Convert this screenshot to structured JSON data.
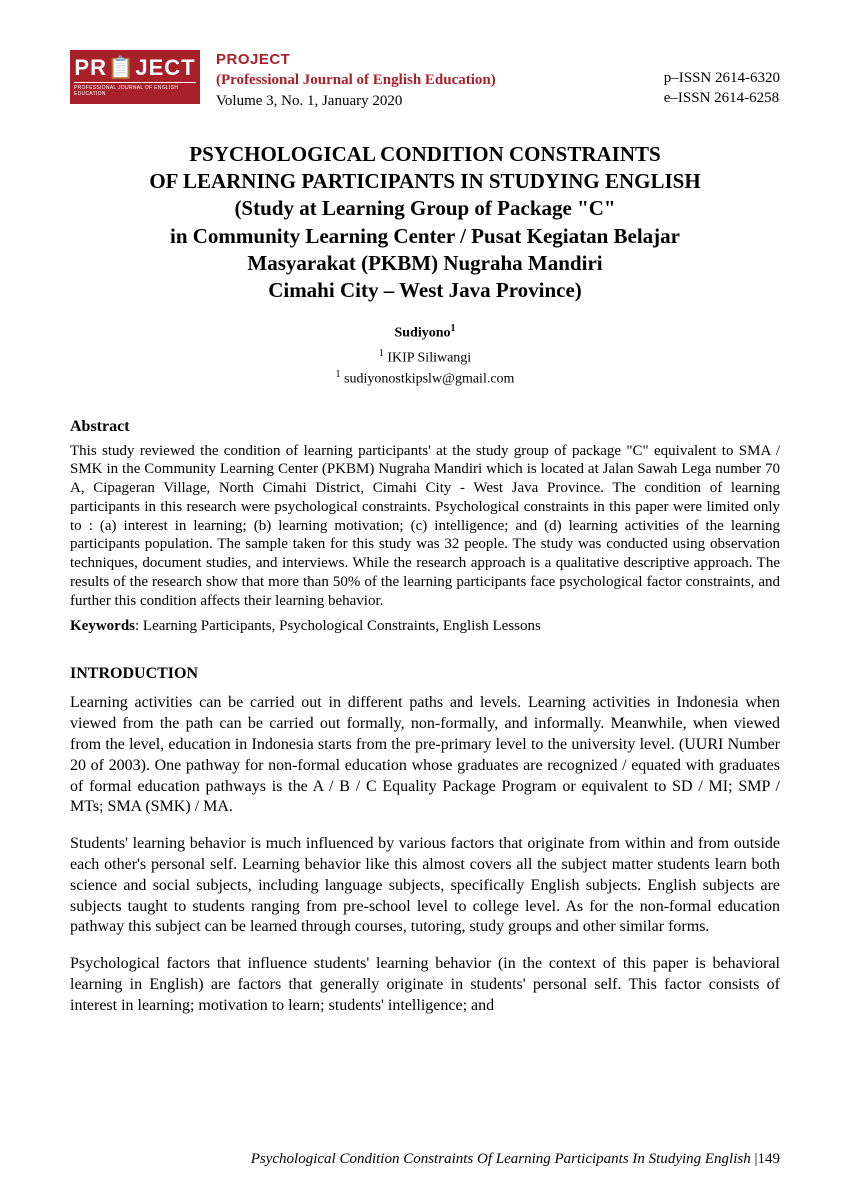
{
  "header": {
    "logo_main": "PR📋JECT",
    "logo_sub": "PROFESSIONAL JOURNAL OF ENGLISH EDUCATION",
    "journal_name": "PROJECT",
    "journal_full": "(Professional Journal of English Education)",
    "volume_line": "Volume 3, No. 1, January 2020",
    "pissn": "p–ISSN  2614-6320",
    "eissn": "e–ISSN  2614-6258"
  },
  "title": {
    "l1": "PSYCHOLOGICAL CONDITION CONSTRAINTS",
    "l2": "OF LEARNING PARTICIPANTS IN STUDYING ENGLISH",
    "l3": "(Study at Learning Group of Package \"C\"",
    "l4": "in Community Learning Center / Pusat Kegiatan Belajar",
    "l5": "Masyarakat (PKBM) Nugraha Mandiri",
    "l6": "Cimahi City – West Java Province)"
  },
  "author": {
    "name": "Sudiyono",
    "sup": "1",
    "affil": "IKIP Siliwangi",
    "affil_sup": "1",
    "email": "sudiyonostkipslw@gmail.com",
    "email_sup": "1"
  },
  "abstract": {
    "head": "Abstract",
    "text": "This study reviewed the condition of learning participants' at the study group of package \"C\" equivalent to SMA / SMK in the Community Learning Center (PKBM) Nugraha Mandiri which is located at Jalan Sawah Lega number 70 A, Cipageran Village, North Cimahi District, Cimahi City - West Java Province. The condition of learning participants in this research  were psychological constraints.  Psychological constraints in this paper were limited only to : (a) interest in learning; (b) learning motivation; (c) intelligence; and (d) learning activities of the learning participants population. The sample taken for this study was 32 people. The study was conducted using observation techniques, document studies, and interviews. While the research approach is a qualitative descriptive approach. The results of the research show that more than 50% of the learning participants face psychological factor constraints, and further this condition affects their learning behavior.",
    "keywords_label": "Keywords",
    "keywords_text": ":  Learning Participants, Psychological Constraints, English Lessons"
  },
  "intro": {
    "head": "INTRODUCTION",
    "p1": "Learning activities can be carried out in different paths and levels. Learning activities in Indonesia when viewed from the path can be carried out formally, non-formally, and informally. Meanwhile, when viewed from the level, education in Indonesia starts from the pre-primary level to the university level. (UURI Number 20 of 2003). One pathway for non-formal education whose graduates are recognized / equated with graduates of formal education pathways is the A / B / C Equality Package Program or equivalent to SD / MI; SMP / MTs; SMA (SMK) / MA.",
    "p2": "Students' learning behavior is much influenced by various factors that originate from within and from outside each other's personal self. Learning behavior like this almost covers all the subject matter students learn both science and social subjects, including language subjects, specifically English subjects. English subjects are subjects taught to students ranging from pre-school level to college level. As for the non-formal education pathway this subject can be learned through courses, tutoring, study groups and other similar forms.",
    "p3": "Psychological factors that influence students' learning behavior (in the context of this paper is behavioral learning in English) are factors that generally originate in students' personal self. This factor consists of interest in learning; motivation to learn; students' intelligence; and"
  },
  "footer": {
    "running": "Psychological Condition Constraints Of Learning Participants In Studying English ",
    "page": "|149"
  },
  "colors": {
    "brand": "#a8212a",
    "text": "#000000",
    "bg": "#ffffff"
  }
}
